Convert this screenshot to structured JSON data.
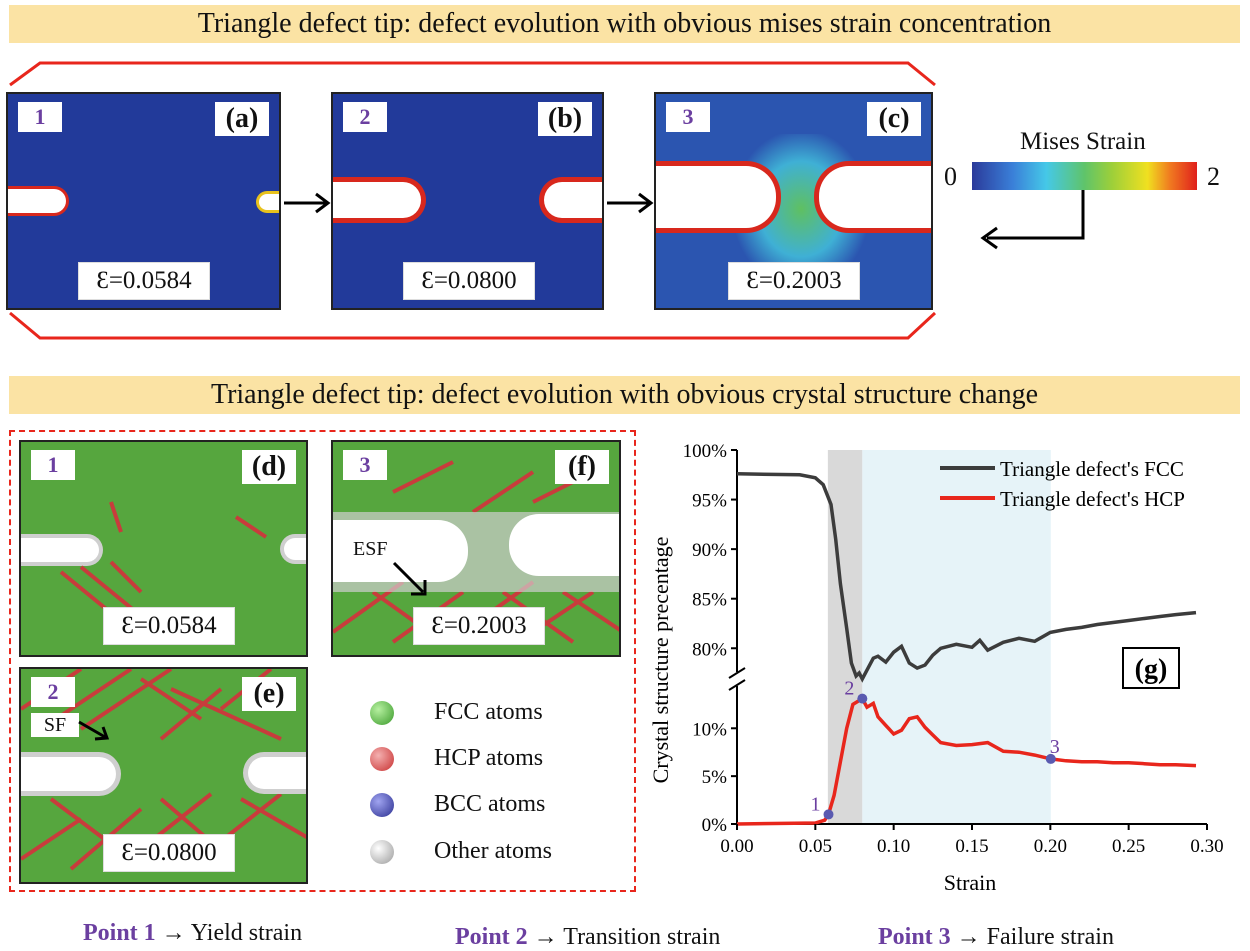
{
  "banner_top": "Triangle defect tip: defect evolution with obvious mises strain concentration",
  "banner_mid": "Triangle defect tip: defect evolution with obvious crystal structure change",
  "mises_panels": [
    {
      "num": "1",
      "letter": "(a)",
      "strain": "Ɛ=0.0584"
    },
    {
      "num": "2",
      "letter": "(b)",
      "strain": "Ɛ=0.0800"
    },
    {
      "num": "3",
      "letter": "(c)",
      "strain": "Ɛ=0.2003"
    }
  ],
  "colorbar": {
    "title": "Mises Strain",
    "min": "0",
    "max": "2"
  },
  "atomic_panels": [
    {
      "num": "1",
      "letter": "(d)",
      "strain": "Ɛ=0.0584"
    },
    {
      "num": "2",
      "letter": "(e)",
      "strain": "Ɛ=0.0800",
      "annotation": "SF"
    },
    {
      "num": "3",
      "letter": "(f)",
      "strain": "Ɛ=0.2003",
      "annotation": "ESF"
    }
  ],
  "atom_legend": [
    {
      "label": "FCC atoms",
      "color": "#4cb53a"
    },
    {
      "label": "HCP atoms",
      "color": "#d84848"
    },
    {
      "label": "BCC atoms",
      "color": "#3b3fa8"
    },
    {
      "label": "Other atoms",
      "color": "#d8d8d8"
    }
  ],
  "points_caption": [
    {
      "point": "Point 1",
      "desc": "Yield strain"
    },
    {
      "point": "Point 2",
      "desc": "Transition strain"
    },
    {
      "point": "Point 3",
      "desc": "Failure strain"
    }
  ],
  "chart_data": {
    "type": "line",
    "panel_label": "(g)",
    "xlabel": "Strain",
    "ylabel": "Crystal structure precentage",
    "xlim": [
      0,
      0.3
    ],
    "xticks": [
      "0.00",
      "0.05",
      "0.10",
      "0.15",
      "0.20",
      "0.25",
      "0.30"
    ],
    "ylim_upper": [
      77,
      100
    ],
    "yticks_upper": [
      "80%",
      "85%",
      "90%",
      "95%",
      "100%"
    ],
    "ylim_lower": [
      0,
      14
    ],
    "yticks_lower": [
      "0%",
      "5%",
      "10%"
    ],
    "broken_axis": true,
    "shaded_regions": [
      {
        "x0": 0.058,
        "x1": 0.08,
        "color": "#d9d9d9"
      },
      {
        "x0": 0.08,
        "x1": 0.2003,
        "color": "#e6f3f8"
      }
    ],
    "series": [
      {
        "name": "Triangle defect's FCC",
        "color": "#3c3c3c",
        "axis": "upper",
        "x": [
          0,
          0.04,
          0.05,
          0.055,
          0.06,
          0.063,
          0.066,
          0.07,
          0.073,
          0.076,
          0.078,
          0.08,
          0.083,
          0.087,
          0.09,
          0.095,
          0.1,
          0.105,
          0.11,
          0.115,
          0.12,
          0.125,
          0.13,
          0.14,
          0.15,
          0.155,
          0.16,
          0.17,
          0.18,
          0.19,
          0.2,
          0.21,
          0.22,
          0.23,
          0.24,
          0.25,
          0.26,
          0.27,
          0.28,
          0.293
        ],
        "y": [
          97.6,
          97.5,
          97.2,
          96.5,
          94.5,
          91,
          86.5,
          82,
          78.5,
          77.2,
          77.5,
          76.9,
          77.8,
          79,
          79.2,
          78.6,
          79.6,
          80.2,
          78.5,
          78,
          78.3,
          79.3,
          80,
          80.4,
          80.1,
          80.8,
          79.8,
          80.6,
          81,
          80.7,
          81.6,
          81.9,
          82.1,
          82.4,
          82.6,
          82.8,
          83,
          83.2,
          83.4,
          83.6
        ]
      },
      {
        "name": "Triangle defect's HCP",
        "color": "#e8261c",
        "axis": "lower",
        "x": [
          0,
          0.05,
          0.056,
          0.0584,
          0.062,
          0.066,
          0.07,
          0.074,
          0.077,
          0.08,
          0.083,
          0.087,
          0.09,
          0.095,
          0.1,
          0.105,
          0.11,
          0.115,
          0.12,
          0.125,
          0.13,
          0.14,
          0.15,
          0.16,
          0.17,
          0.18,
          0.19,
          0.2003,
          0.21,
          0.22,
          0.23,
          0.24,
          0.25,
          0.26,
          0.27,
          0.28,
          0.293
        ],
        "y": [
          0,
          0.1,
          0.4,
          1.0,
          3.0,
          6.5,
          10,
          12.5,
          12.8,
          13.1,
          12.2,
          12.6,
          11.2,
          10.3,
          9.4,
          9.8,
          11,
          11.2,
          10.1,
          9.3,
          8.5,
          8.2,
          8.3,
          8.5,
          7.6,
          7.5,
          7.2,
          6.8,
          6.6,
          6.5,
          6.5,
          6.4,
          6.4,
          6.3,
          6.2,
          6.2,
          6.1
        ]
      }
    ],
    "marked_points": [
      {
        "label": "1",
        "x": 0.0584,
        "y": 1.0
      },
      {
        "label": "2",
        "x": 0.08,
        "y": 13.1
      },
      {
        "label": "3",
        "x": 0.2003,
        "y": 6.8
      }
    ]
  }
}
